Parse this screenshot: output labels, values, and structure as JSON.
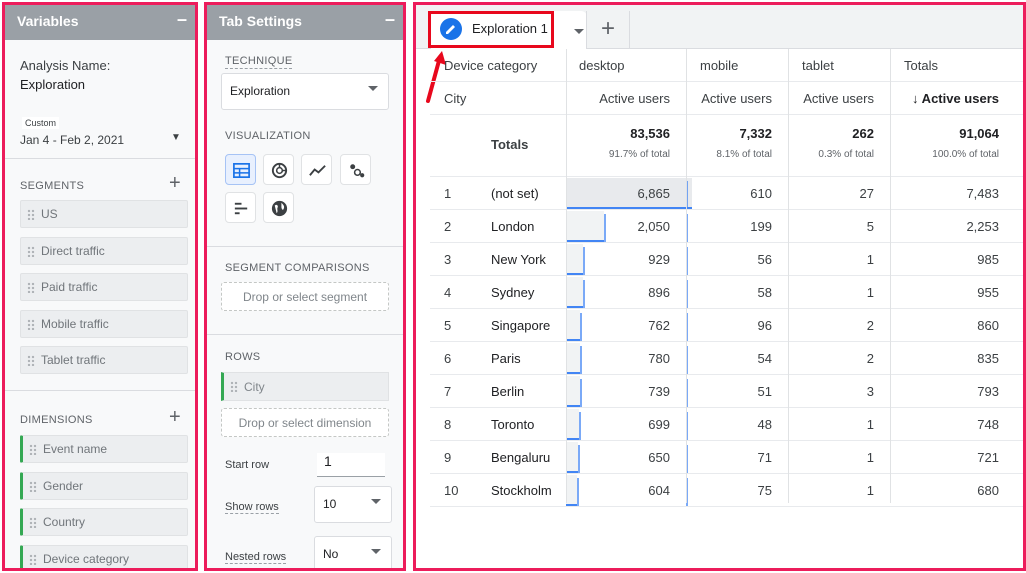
{
  "variables_panel": {
    "title": "Variables",
    "minimize_symbol": "–",
    "analysis_name_label": "Analysis Name:",
    "analysis_name_value": "Exploration",
    "date_chip": "Custom",
    "date_range": "Jan 4 - Feb 2, 2021",
    "segments_title": "SEGMENTS",
    "segments": [
      "US",
      "Direct traffic",
      "Paid traffic",
      "Mobile traffic",
      "Tablet traffic"
    ],
    "dimensions_title": "DIMENSIONS",
    "dimensions": [
      "Event name",
      "Gender",
      "Country",
      "Device category"
    ]
  },
  "tab_settings": {
    "title": "Tab Settings",
    "minimize_symbol": "–",
    "technique_label": "TECHNIQUE",
    "technique_value": "Exploration",
    "visualization_label": "VISUALIZATION",
    "visualization_icons": [
      "table-icon",
      "donut-chart-icon",
      "line-chart-icon",
      "scatter-icon",
      "bar-chart-icon",
      "geo-map-icon"
    ],
    "segment_comparisons_label": "SEGMENT COMPARISONS",
    "segment_drop": "Drop or select segment",
    "rows_label": "ROWS",
    "row_dimension": "City",
    "row_drop": "Drop or select dimension",
    "start_row_label": "Start row",
    "start_row_value": "1",
    "show_rows_label": "Show rows",
    "show_rows_value": "10",
    "nested_rows_label": "Nested rows",
    "nested_rows_value": "No"
  },
  "exploration": {
    "tab_label": "Exploration 1",
    "add_tab_symbol": "+",
    "accent_color": "#ec1c5b",
    "header": {
      "device_category_label": "Device category",
      "city_label": "City",
      "columns": [
        "desktop",
        "mobile",
        "tablet",
        "Totals"
      ],
      "metric_labels": [
        "Active users",
        "Active users",
        "Active users",
        "↓ Active users"
      ]
    },
    "totals": {
      "label": "Totals",
      "values": [
        "83,536",
        "7,332",
        "262",
        "91,064"
      ],
      "percents": [
        "91.7% of total",
        "8.1% of total",
        "0.3% of total",
        "100.0% of total"
      ]
    },
    "rows": [
      {
        "n": "1",
        "city": "(not set)",
        "desktop": "6,865",
        "mobile": "610",
        "tablet": "27",
        "total": "7,483",
        "desktop_share": 1.0,
        "mobile_share": 0.089
      },
      {
        "n": "2",
        "city": "London",
        "desktop": "2,050",
        "mobile": "199",
        "tablet": "5",
        "total": "2,253",
        "desktop_share": 0.299,
        "mobile_share": 0.029
      },
      {
        "n": "3",
        "city": "New York",
        "desktop": "929",
        "mobile": "56",
        "tablet": "1",
        "total": "985",
        "desktop_share": 0.135,
        "mobile_share": 0.008
      },
      {
        "n": "4",
        "city": "Sydney",
        "desktop": "896",
        "mobile": "58",
        "tablet": "1",
        "total": "955",
        "desktop_share": 0.131,
        "mobile_share": 0.008
      },
      {
        "n": "5",
        "city": "Singapore",
        "desktop": "762",
        "mobile": "96",
        "tablet": "2",
        "total": "860",
        "desktop_share": 0.111,
        "mobile_share": 0.014
      },
      {
        "n": "6",
        "city": "Paris",
        "desktop": "780",
        "mobile": "54",
        "tablet": "2",
        "total": "835",
        "desktop_share": 0.114,
        "mobile_share": 0.008
      },
      {
        "n": "7",
        "city": "Berlin",
        "desktop": "739",
        "mobile": "51",
        "tablet": "3",
        "total": "793",
        "desktop_share": 0.108,
        "mobile_share": 0.007
      },
      {
        "n": "8",
        "city": "Toronto",
        "desktop": "699",
        "mobile": "48",
        "tablet": "1",
        "total": "748",
        "desktop_share": 0.102,
        "mobile_share": 0.007
      },
      {
        "n": "9",
        "city": "Bengaluru",
        "desktop": "650",
        "mobile": "71",
        "tablet": "1",
        "total": "721",
        "desktop_share": 0.095,
        "mobile_share": 0.01
      },
      {
        "n": "10",
        "city": "Stockholm",
        "desktop": "604",
        "mobile": "75",
        "tablet": "1",
        "total": "680",
        "desktop_share": 0.088,
        "mobile_share": 0.011
      }
    ]
  }
}
